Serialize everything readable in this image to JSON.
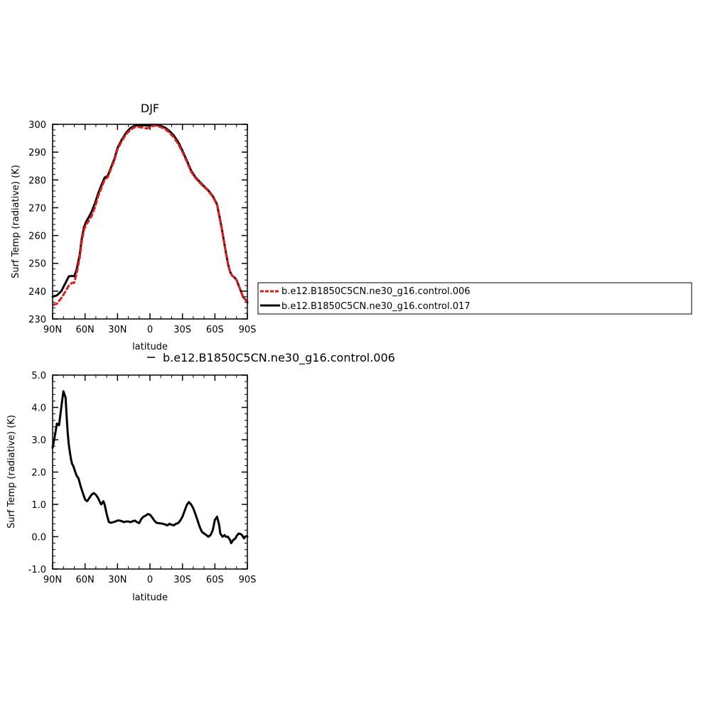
{
  "chart_data": [
    {
      "type": "line",
      "title": "DJF",
      "xlabel": "latitude",
      "ylabel": "Surf Temp (radiative) (K)",
      "xlim": [
        90,
        -90
      ],
      "ylim": [
        230,
        300
      ],
      "x_ticks": [
        {
          "value": 90,
          "label": "90N"
        },
        {
          "value": 60,
          "label": "60N"
        },
        {
          "value": 30,
          "label": "30N"
        },
        {
          "value": 0,
          "label": "0"
        },
        {
          "value": -30,
          "label": "30S"
        },
        {
          "value": -60,
          "label": "60S"
        },
        {
          "value": -90,
          "label": "90S"
        }
      ],
      "y_ticks": [
        {
          "value": 230,
          "label": "230"
        },
        {
          "value": 240,
          "label": "240"
        },
        {
          "value": 250,
          "label": "250"
        },
        {
          "value": 260,
          "label": "260"
        },
        {
          "value": 270,
          "label": "270"
        },
        {
          "value": 280,
          "label": "280"
        },
        {
          "value": 290,
          "label": "290"
        },
        {
          "value": 300,
          "label": "300"
        }
      ],
      "legend_position": "right",
      "series": [
        {
          "name": "b.e12.B1850C5CN.ne30_g16.control.006",
          "color": "#e31a1c",
          "style": "dashed",
          "x": [
            90,
            86,
            82,
            78,
            75,
            72,
            70,
            68,
            65,
            63,
            61,
            59,
            57,
            54,
            51,
            48,
            45,
            42,
            39,
            36,
            33,
            30,
            26,
            22,
            18,
            14,
            10,
            6,
            3,
            0,
            -3,
            -6,
            -10,
            -14,
            -18,
            -22,
            -26,
            -30,
            -34,
            -38,
            -42,
            -46,
            -50,
            -54,
            -58,
            -62,
            -66,
            -70,
            -72,
            -74,
            -76,
            -78,
            -80,
            -82,
            -84,
            -86,
            -88,
            -90
          ],
          "y": [
            235,
            235.5,
            237.5,
            240,
            242,
            243,
            243,
            246,
            252,
            258,
            262,
            264,
            265,
            267,
            270,
            274,
            277,
            280,
            281,
            284,
            287,
            291,
            294,
            296.5,
            298,
            299,
            299,
            298.8,
            298.5,
            299,
            299.5,
            299.5,
            299,
            298.3,
            297,
            295.3,
            293,
            290,
            286.6,
            283,
            280.7,
            279,
            277.5,
            276,
            274,
            271,
            263,
            254,
            250,
            247,
            245.5,
            245,
            244,
            242,
            240,
            238,
            237,
            236
          ]
        },
        {
          "name": "b.e12.B1850C5CN.ne30_g16.control.017",
          "color": "#000000",
          "style": "solid",
          "x": [
            90,
            86,
            82,
            78,
            75,
            72,
            70,
            68,
            65,
            63,
            61,
            59,
            57,
            54,
            51,
            48,
            45,
            42,
            39,
            36,
            33,
            30,
            26,
            22,
            18,
            14,
            10,
            6,
            3,
            0,
            -3,
            -6,
            -10,
            -14,
            -18,
            -22,
            -26,
            -30,
            -34,
            -38,
            -42,
            -46,
            -50,
            -54,
            -58,
            -62,
            -66,
            -70,
            -72,
            -74,
            -76,
            -78,
            -80,
            -82,
            -84,
            -86,
            -88,
            -90
          ],
          "y": [
            238,
            238.5,
            240,
            243,
            245.3,
            245.5,
            245.3,
            247.5,
            253,
            259,
            263,
            265,
            266.3,
            268.5,
            271.5,
            275,
            278,
            280.8,
            281.5,
            284.5,
            287.5,
            291.5,
            294.5,
            297,
            298.7,
            299.5,
            299.7,
            299.7,
            299.6,
            299.7,
            299.8,
            299.8,
            299.4,
            298.8,
            297.6,
            296,
            293.7,
            290.5,
            287,
            283.4,
            281,
            279.3,
            277.7,
            276.2,
            274.2,
            271.2,
            263.3,
            254.2,
            250,
            247,
            245.5,
            245,
            244,
            242,
            240,
            238,
            237,
            236
          ]
        }
      ]
    },
    {
      "type": "line",
      "title": "",
      "xlabel": "latitude",
      "ylabel": "Surf Temp (radiative) (K)",
      "xlim": [
        90,
        -90
      ],
      "ylim": [
        -1.0,
        5.0
      ],
      "x_ticks": [
        {
          "value": 90,
          "label": "90N"
        },
        {
          "value": 60,
          "label": "60N"
        },
        {
          "value": 30,
          "label": "30N"
        },
        {
          "value": 0,
          "label": "0"
        },
        {
          "value": -30,
          "label": "30S"
        },
        {
          "value": -60,
          "label": "60S"
        },
        {
          "value": -90,
          "label": "90S"
        }
      ],
      "y_ticks": [
        {
          "value": -1.0,
          "label": "-1.0"
        },
        {
          "value": 0.0,
          "label": "0.0"
        },
        {
          "value": 1.0,
          "label": "1.0"
        },
        {
          "value": 2.0,
          "label": "2.0"
        },
        {
          "value": 3.0,
          "label": "3.0"
        },
        {
          "value": 4.0,
          "label": "4.0"
        },
        {
          "value": 5.0,
          "label": "5.0"
        }
      ],
      "legend_position": "top",
      "series": [
        {
          "name": "b.e12.B1850C5CN.ne30_g16.control.006",
          "color": "#000000",
          "style": "solid",
          "x": [
            90,
            88,
            86,
            84,
            82,
            80,
            78,
            77,
            76,
            75,
            74,
            73,
            72,
            71,
            70,
            69,
            68,
            66,
            64,
            62,
            60,
            58,
            56,
            54,
            52,
            50,
            48,
            46,
            45,
            43,
            42,
            40,
            38,
            36,
            34,
            32,
            30,
            28,
            26,
            24,
            22,
            20,
            18,
            16,
            14,
            12,
            10,
            8,
            6,
            4,
            2,
            0,
            -2,
            -4,
            -6,
            -8,
            -10,
            -12,
            -14,
            -16,
            -18,
            -20,
            -22,
            -24,
            -26,
            -28,
            -30,
            -32,
            -34,
            -36,
            -38,
            -40,
            -42,
            -44,
            -46,
            -48,
            -50,
            -52,
            -54,
            -56,
            -58,
            -60,
            -62,
            -64,
            -65,
            -66,
            -67,
            -68,
            -69,
            -70,
            -72,
            -73,
            -74,
            -75,
            -76,
            -77,
            -78,
            -79,
            -80,
            -82,
            -84,
            -85,
            -86,
            -87,
            -88,
            -89,
            -90
          ],
          "y": [
            2.75,
            3.1,
            3.5,
            3.45,
            4.0,
            4.5,
            4.3,
            3.7,
            3.2,
            2.85,
            2.6,
            2.4,
            2.25,
            2.2,
            2.1,
            2.0,
            1.9,
            1.8,
            1.55,
            1.35,
            1.15,
            1.1,
            1.2,
            1.3,
            1.35,
            1.3,
            1.2,
            1.05,
            1.0,
            1.1,
            1.0,
            0.7,
            0.45,
            0.43,
            0.45,
            0.47,
            0.5,
            0.5,
            0.48,
            0.45,
            0.47,
            0.47,
            0.45,
            0.48,
            0.5,
            0.45,
            0.42,
            0.55,
            0.62,
            0.65,
            0.7,
            0.68,
            0.6,
            0.5,
            0.43,
            0.42,
            0.41,
            0.4,
            0.38,
            0.35,
            0.4,
            0.37,
            0.35,
            0.4,
            0.42,
            0.5,
            0.62,
            0.8,
            0.98,
            1.07,
            1.0,
            0.88,
            0.7,
            0.5,
            0.3,
            0.15,
            0.1,
            0.05,
            0.0,
            0.05,
            0.2,
            0.52,
            0.62,
            0.35,
            0.1,
            0.05,
            0.0,
            0.02,
            0.05,
            0.0,
            0.0,
            -0.05,
            -0.1,
            -0.2,
            -0.15,
            -0.1,
            -0.08,
            -0.05,
            0.02,
            0.1,
            0.08,
            0.05,
            0.0,
            -0.05,
            0.0,
            0.02,
            0.0
          ]
        }
      ]
    }
  ]
}
